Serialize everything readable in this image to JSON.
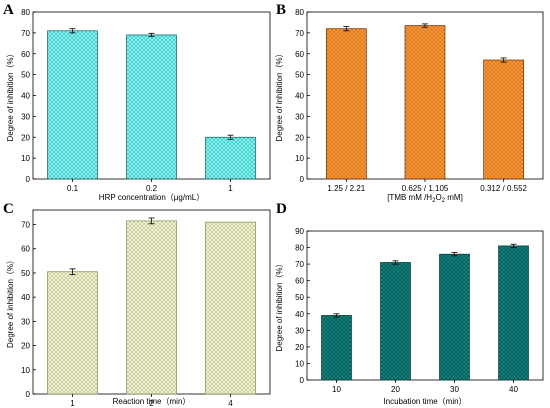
{
  "colors": {
    "A": "#29d3d1",
    "B": "#e07416",
    "C": "#e9ebc2",
    "D": "#108a86"
  },
  "chart_data": [
    {
      "panel": "A",
      "type": "bar",
      "categories": [
        "0.1",
        "0.2",
        "1"
      ],
      "values": [
        71,
        69,
        20
      ],
      "errors": [
        1,
        0.8,
        1
      ],
      "xlabel": "HRP concentration（μg/mL）",
      "ylabel": "Degree of inhibition（%）",
      "ylim": [
        0,
        80
      ],
      "yticks": [
        "0",
        "10",
        "20",
        "30",
        "40",
        "50",
        "60",
        "70",
        "80"
      ],
      "pattern": "diagonal-cross"
    },
    {
      "panel": "B",
      "type": "bar",
      "categories": [
        "1.25 / 2.21",
        "0.625 / 1.105",
        "0.312 / 0.552"
      ],
      "values": [
        72,
        73.5,
        57
      ],
      "errors": [
        1,
        0.8,
        1
      ],
      "xlabel_pre": "[TMB mM /H",
      "xlabel_sub": "2",
      "xlabel_mid": "O",
      "xlabel_sub2": "2",
      "xlabel_post": " mM]",
      "ylabel": "Degree of inhibition（%）",
      "ylim": [
        0,
        80
      ],
      "yticks": [
        "0",
        "10",
        "20",
        "30",
        "40",
        "50",
        "60",
        "70",
        "80"
      ],
      "pattern": "diagonal-cross"
    },
    {
      "panel": "C",
      "type": "bar",
      "categories": [
        "1",
        "2",
        "4"
      ],
      "values": [
        50.5,
        71.5,
        71
      ],
      "errors": [
        1.2,
        1.2,
        0
      ],
      "xlabel": "Reaction time（min）",
      "ylabel": "Degree of inhibition（%）",
      "ylim": [
        0,
        76
      ],
      "yticks": [
        "0",
        "10",
        "20",
        "30",
        "40",
        "50",
        "60",
        "70"
      ],
      "pattern": "fine-cross"
    },
    {
      "panel": "D",
      "type": "bar",
      "categories": [
        "10",
        "20",
        "30",
        "40"
      ],
      "values": [
        39,
        71,
        76,
        81
      ],
      "errors": [
        1,
        1,
        1,
        1
      ],
      "xlabel": "Incubation time（min）",
      "ylabel": "Degree of inhibition（%）",
      "ylim": [
        0,
        90
      ],
      "yticks": [
        "0",
        "10",
        "20",
        "30",
        "40",
        "50",
        "60",
        "70",
        "80",
        "90"
      ],
      "pattern": "diagonal-cross"
    }
  ]
}
